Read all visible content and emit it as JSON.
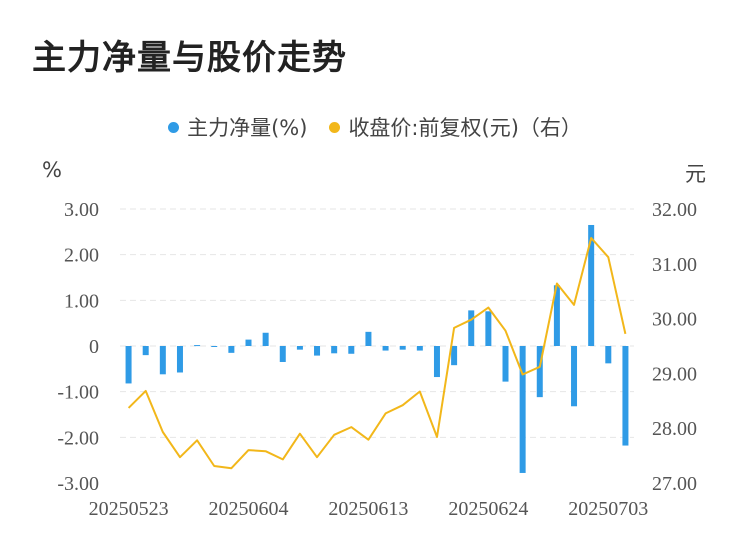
{
  "title": "主力净量与股价走势",
  "legend": {
    "net": "主力净量(%)",
    "price": "收盘价:前复权(元)（右）"
  },
  "colors": {
    "bar": "#2f9be6",
    "line": "#f2b71a",
    "grid": "#e6e6e6",
    "axis_text": "#555555"
  },
  "chart_data": {
    "type": "bar+line",
    "x_tick_labels": [
      "20250523",
      "20250604",
      "20250613",
      "20250624",
      "20250703"
    ],
    "left_axis": {
      "unit": "%",
      "ylim": [
        -3,
        3
      ],
      "ticks": [
        "3.00",
        "2.00",
        "1.00",
        "0",
        "-1.00",
        "-2.00",
        "-3.00"
      ]
    },
    "right_axis": {
      "unit": "元",
      "ylim": [
        27,
        32
      ],
      "ticks": [
        "32.00",
        "31.00",
        "30.00",
        "29.00",
        "28.00",
        "27.00"
      ]
    },
    "series": [
      {
        "name": "主力净量(%)",
        "type": "bar",
        "axis": "left",
        "values": [
          -0.82,
          -0.2,
          -0.62,
          -0.58,
          0.02,
          -0.02,
          -0.15,
          0.14,
          0.29,
          -0.35,
          -0.08,
          -0.21,
          -0.16,
          -0.17,
          0.31,
          -0.1,
          -0.08,
          -0.1,
          -0.68,
          -0.42,
          0.78,
          0.76,
          -0.78,
          -2.78,
          -1.12,
          1.33,
          -1.32,
          2.65,
          -0.38,
          -2.18
        ]
      },
      {
        "name": "收盘价:前复权(元)（右）",
        "type": "line",
        "axis": "right",
        "values": [
          28.37,
          28.68,
          27.93,
          27.47,
          27.78,
          27.31,
          27.27,
          27.6,
          27.58,
          27.43,
          27.9,
          27.47,
          27.88,
          28.02,
          27.79,
          28.27,
          28.42,
          28.67,
          27.84,
          29.83,
          29.98,
          30.2,
          29.78,
          28.98,
          29.12,
          30.64,
          30.25,
          31.47,
          31.12,
          29.72
        ]
      }
    ]
  }
}
